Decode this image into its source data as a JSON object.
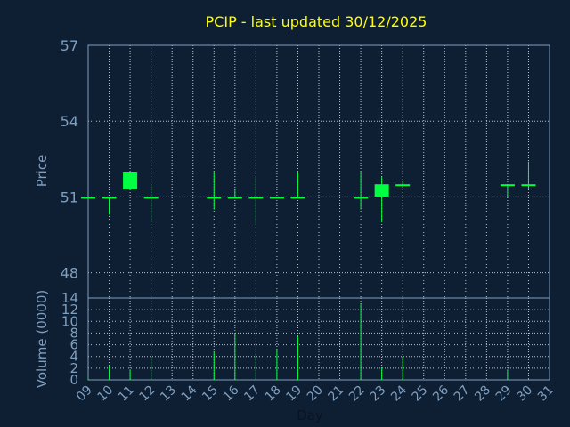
{
  "chart_data": {
    "type": "candlestick",
    "title": "PCIP - last updated 30/12/2025",
    "grid": true,
    "colors": {
      "background": "#0f1f33",
      "up": "#00ff40",
      "down": "#00ff40",
      "grid": "#b8c4d0",
      "axis": "#7f9fbf",
      "title": "#ffff00"
    },
    "price_panel": {
      "ylabel": "Price",
      "ylim": [
        47,
        57
      ],
      "yticks": [
        48,
        51,
        54,
        57
      ]
    },
    "volume_panel": {
      "ylabel": "Volume (0000)",
      "ylim": [
        0,
        14
      ],
      "yticks": [
        0,
        2,
        4,
        6,
        8,
        10,
        12,
        14
      ]
    },
    "xlabel": "Day",
    "x_ticks": [
      "09",
      "10",
      "11",
      "12",
      "13",
      "14",
      "15",
      "16",
      "17",
      "18",
      "19",
      "20",
      "21",
      "22",
      "23",
      "24",
      "25",
      "26",
      "27",
      "28",
      "29",
      "30",
      "31"
    ],
    "series": [
      {
        "day": "09",
        "open": 51.0,
        "high": 51.0,
        "low": 51.0,
        "close": 51.0,
        "volume": 0.3
      },
      {
        "day": "10",
        "open": 51.0,
        "high": 51.0,
        "low": 50.3,
        "close": 51.0,
        "volume": 2.5
      },
      {
        "day": "11",
        "open": 51.3,
        "high": 52.0,
        "low": 51.3,
        "close": 52.0,
        "volume": 1.8
      },
      {
        "day": "12",
        "open": 51.0,
        "high": 51.5,
        "low": 50.0,
        "close": 51.0,
        "volume": 3.8
      },
      {
        "day": "15",
        "open": 51.0,
        "high": 52.0,
        "low": 50.5,
        "close": 51.0,
        "volume": 4.8
      },
      {
        "day": "16",
        "open": 51.0,
        "high": 51.3,
        "low": 51.0,
        "close": 51.0,
        "volume": 8.0
      },
      {
        "day": "17",
        "open": 51.0,
        "high": 51.8,
        "low": 49.9,
        "close": 51.0,
        "volume": 4.5
      },
      {
        "day": "18",
        "open": 51.0,
        "high": 51.0,
        "low": 51.0,
        "close": 51.0,
        "volume": 5.2
      },
      {
        "day": "19",
        "open": 51.0,
        "high": 52.0,
        "low": 51.0,
        "close": 51.0,
        "volume": 7.5
      },
      {
        "day": "22",
        "open": 51.0,
        "high": 52.0,
        "low": 50.5,
        "close": 51.0,
        "volume": 13.0
      },
      {
        "day": "23",
        "open": 51.0,
        "high": 51.8,
        "low": 50.0,
        "close": 51.5,
        "volume": 2.0
      },
      {
        "day": "24",
        "open": 51.5,
        "high": 51.6,
        "low": 51.4,
        "close": 51.5,
        "volume": 4.0
      },
      {
        "day": "29",
        "open": 51.5,
        "high": 51.5,
        "low": 51.0,
        "close": 51.5,
        "volume": 1.8
      },
      {
        "day": "30",
        "open": 51.5,
        "high": 52.4,
        "low": 51.3,
        "close": 51.5,
        "volume": 0.3
      }
    ]
  }
}
